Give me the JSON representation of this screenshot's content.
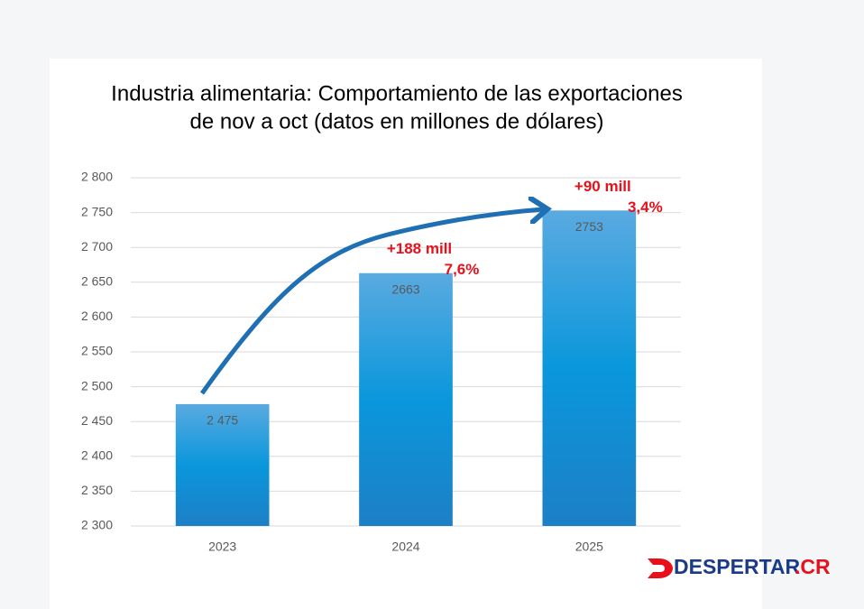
{
  "chart_data": {
    "type": "bar",
    "title": [
      "Industria alimentaria: Comportamiento de las exportaciones",
      "de nov a oct (datos en millones de dólares)"
    ],
    "categories": [
      "2023",
      "2024",
      "2025"
    ],
    "values": [
      2475,
      2663,
      2753
    ],
    "value_labels": [
      "2 475",
      "2663",
      "2753"
    ],
    "ylim": [
      2300,
      2800
    ],
    "yticks": [
      {
        "value": 2300,
        "label": "2 300"
      },
      {
        "value": 2350,
        "label": "2 350"
      },
      {
        "value": 2400,
        "label": "2 400"
      },
      {
        "value": 2450,
        "label": "2 450"
      },
      {
        "value": 2500,
        "label": "2 500"
      },
      {
        "value": 2550,
        "label": "2 550"
      },
      {
        "value": 2600,
        "label": "2 600"
      },
      {
        "value": 2650,
        "label": "2 650"
      },
      {
        "value": 2700,
        "label": "2 700"
      },
      {
        "value": 2750,
        "label": "2 750"
      },
      {
        "value": 2800,
        "label": "2 800"
      }
    ],
    "grid": true,
    "annotations": [
      "+188 mill",
      "7,6%",
      "+90 mill",
      "3,4%"
    ],
    "annotation_color": "#e8101a"
  },
  "logo": {
    "text": "DESPERTAR",
    "suffix": ".CR"
  }
}
